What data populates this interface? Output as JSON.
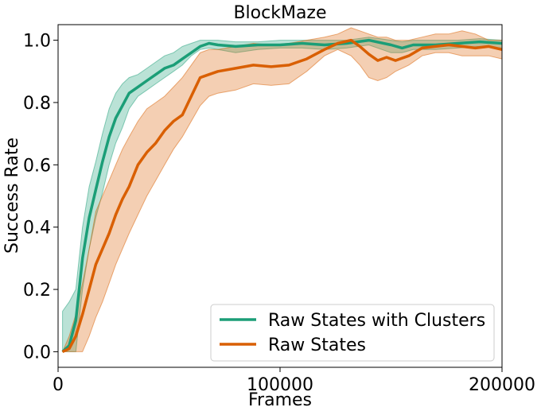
{
  "chart_data": {
    "type": "line",
    "title": "BlockMaze",
    "xlabel": "Frames",
    "ylabel": "Success Rate",
    "xlim": [
      0,
      200000
    ],
    "ylim": [
      -0.05,
      1.05
    ],
    "xticks": [
      0,
      100000,
      200000
    ],
    "yticks": [
      0.0,
      0.2,
      0.4,
      0.6,
      0.8,
      1.0
    ],
    "xtick_labels": [
      "0",
      "100000",
      "200000"
    ],
    "ytick_labels": [
      "0.0",
      "0.2",
      "0.4",
      "0.6",
      "0.8",
      "1.0"
    ],
    "grid": false,
    "legend_position": "lower-right",
    "series": [
      {
        "name": "Raw States with Clusters",
        "color": "#1b9e77",
        "x": [
          2000,
          5000,
          8000,
          11000,
          14000,
          17000,
          20000,
          23000,
          26000,
          29000,
          32000,
          36000,
          40000,
          44000,
          48000,
          52000,
          56000,
          60000,
          64000,
          68000,
          72000,
          80000,
          90000,
          100000,
          110000,
          120000,
          130000,
          140000,
          150000,
          155000,
          160000,
          170000,
          180000,
          190000,
          200000
        ],
        "y": [
          0.0,
          0.02,
          0.1,
          0.3,
          0.43,
          0.52,
          0.61,
          0.69,
          0.75,
          0.79,
          0.83,
          0.85,
          0.87,
          0.89,
          0.91,
          0.92,
          0.94,
          0.96,
          0.98,
          0.99,
          0.985,
          0.98,
          0.985,
          0.985,
          0.99,
          0.985,
          0.99,
          1.0,
          0.985,
          0.975,
          0.985,
          0.985,
          0.99,
          0.995,
          0.99
        ],
        "lower": [
          0.0,
          0.0,
          0.0,
          0.2,
          0.33,
          0.43,
          0.51,
          0.6,
          0.67,
          0.72,
          0.78,
          0.82,
          0.84,
          0.86,
          0.88,
          0.9,
          0.92,
          0.95,
          0.97,
          0.975,
          0.97,
          0.96,
          0.97,
          0.975,
          0.975,
          0.97,
          0.975,
          0.985,
          0.96,
          0.96,
          0.97,
          0.97,
          0.975,
          0.98,
          0.975
        ],
        "upper": [
          0.13,
          0.16,
          0.2,
          0.4,
          0.53,
          0.61,
          0.7,
          0.78,
          0.83,
          0.86,
          0.88,
          0.89,
          0.91,
          0.93,
          0.95,
          0.96,
          0.98,
          0.99,
          1.0,
          1.0,
          1.0,
          0.995,
          0.995,
          1.0,
          1.0,
          1.0,
          1.0,
          1.01,
          1.0,
          0.995,
          1.0,
          1.0,
          1.0,
          1.005,
          1.0
        ]
      },
      {
        "name": "Raw States",
        "color": "#d95f02",
        "x": [
          2000,
          5000,
          8000,
          11000,
          14000,
          17000,
          20000,
          23000,
          26000,
          29000,
          32000,
          36000,
          40000,
          44000,
          48000,
          52000,
          56000,
          60000,
          64000,
          68000,
          72000,
          80000,
          88000,
          96000,
          104000,
          112000,
          120000,
          126000,
          132000,
          136000,
          140000,
          144000,
          148000,
          152000,
          158000,
          164000,
          170000,
          176000,
          182000,
          188000,
          194000,
          200000
        ],
        "y": [
          0.0,
          0.01,
          0.05,
          0.12,
          0.2,
          0.28,
          0.33,
          0.38,
          0.44,
          0.49,
          0.53,
          0.6,
          0.64,
          0.67,
          0.71,
          0.74,
          0.76,
          0.82,
          0.88,
          0.89,
          0.9,
          0.91,
          0.92,
          0.915,
          0.92,
          0.94,
          0.97,
          0.99,
          1.0,
          0.98,
          0.955,
          0.935,
          0.945,
          0.935,
          0.95,
          0.975,
          0.98,
          0.985,
          0.98,
          0.975,
          0.98,
          0.97
        ],
        "lower": [
          0.0,
          0.0,
          0.0,
          0.0,
          0.05,
          0.11,
          0.16,
          0.22,
          0.28,
          0.33,
          0.38,
          0.44,
          0.5,
          0.55,
          0.6,
          0.65,
          0.69,
          0.74,
          0.79,
          0.82,
          0.83,
          0.84,
          0.86,
          0.855,
          0.86,
          0.9,
          0.95,
          0.97,
          0.95,
          0.92,
          0.88,
          0.87,
          0.88,
          0.9,
          0.92,
          0.95,
          0.96,
          0.96,
          0.95,
          0.95,
          0.95,
          0.94
        ],
        "upper": [
          0.0,
          0.05,
          0.12,
          0.22,
          0.33,
          0.45,
          0.5,
          0.55,
          0.6,
          0.65,
          0.69,
          0.74,
          0.78,
          0.8,
          0.82,
          0.85,
          0.88,
          0.92,
          0.96,
          0.97,
          0.97,
          0.98,
          0.99,
          0.985,
          0.99,
          1.0,
          1.01,
          1.02,
          1.04,
          1.03,
          1.02,
          1.01,
          1.01,
          1.0,
          1.0,
          1.01,
          1.02,
          1.02,
          1.03,
          1.02,
          1.0,
          1.0
        ]
      }
    ]
  }
}
